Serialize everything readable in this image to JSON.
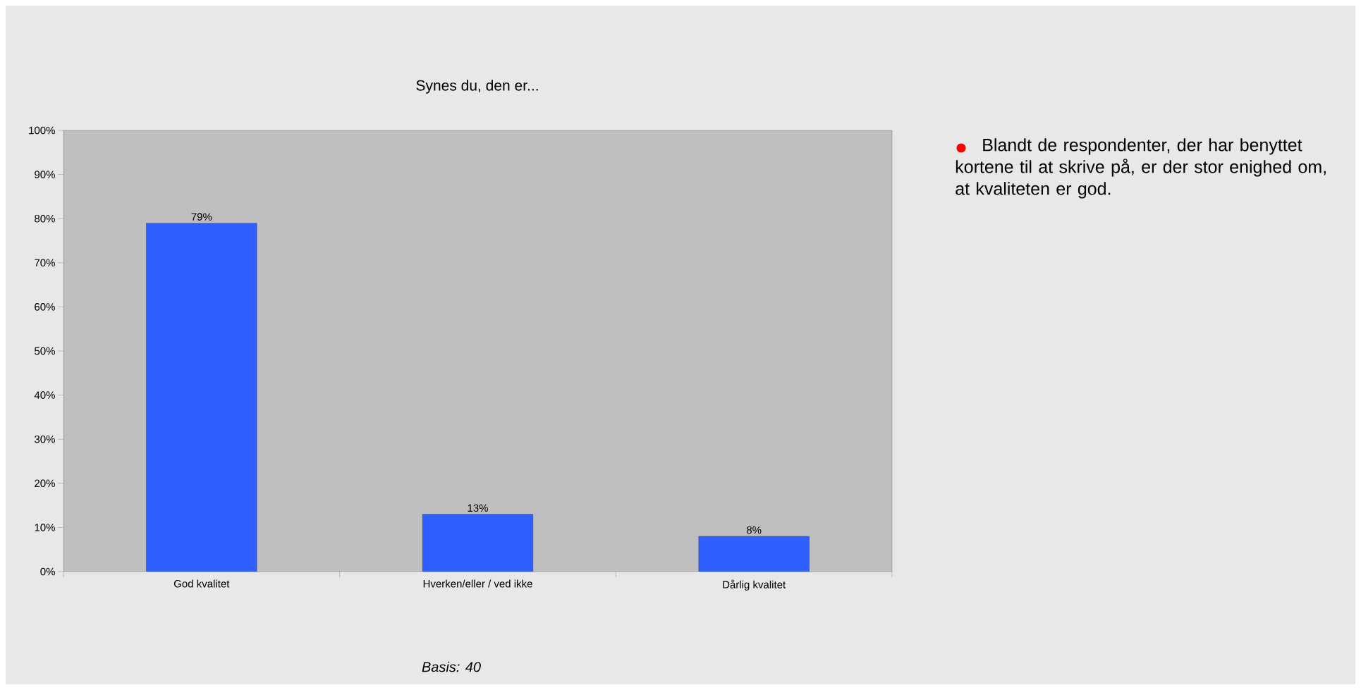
{
  "chart_data": {
    "type": "bar",
    "title": "Synes du, den er...",
    "categories": [
      "God kvalitet",
      "Hverken/eller / ved ikke",
      "Dårlig kvalitet"
    ],
    "values": [
      79,
      13,
      8
    ],
    "value_labels": [
      "79%",
      "13%",
      "8%"
    ],
    "color": "#2f5fff",
    "ylim": [
      0,
      100
    ],
    "yticks": [
      {
        "value": 0,
        "label": "0%"
      },
      {
        "value": 10,
        "label": "10%"
      },
      {
        "value": 20,
        "label": "20%"
      },
      {
        "value": 30,
        "label": "30%"
      },
      {
        "value": 40,
        "label": "40%"
      },
      {
        "value": 50,
        "label": "50%"
      },
      {
        "value": 60,
        "label": "60%"
      },
      {
        "value": 70,
        "label": "70%"
      },
      {
        "value": 80,
        "label": "80%"
      },
      {
        "value": 90,
        "label": "90%"
      },
      {
        "value": 100,
        "label": "100%"
      }
    ],
    "annotations": [
      "Blandt de respondenter, der har benyttet kortene til at skrive på, er der stor enighed om, at kvaliteten er god.",
      "Basis: 40"
    ]
  }
}
